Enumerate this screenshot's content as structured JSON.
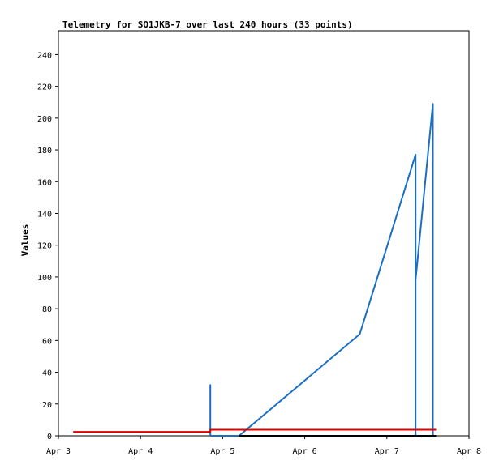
{
  "chart_data": {
    "type": "line",
    "title": "Telemetry for SQ1JKB-7 over last 240 hours (33 points)",
    "xlabel": "",
    "ylabel": "Values",
    "x_ticks": [
      "Apr 3",
      "Apr 4",
      "Apr 5",
      "Apr 6",
      "Apr 7",
      "Apr 8"
    ],
    "xlim": [
      3.0,
      8.0
    ],
    "y_ticks": [
      0,
      20,
      40,
      60,
      80,
      100,
      120,
      140,
      160,
      180,
      200,
      220,
      240
    ],
    "ylim": [
      0,
      255
    ],
    "grid": false,
    "series": [
      {
        "color": "#1a6fc4",
        "x": [
          4.85,
          4.85,
          4.85,
          5.1,
          5.2,
          6.67,
          7.35,
          7.35,
          7.35,
          7.56,
          7.56
        ],
        "y": [
          0,
          32,
          0,
          0,
          0,
          64,
          177,
          0,
          98,
          209,
          0
        ]
      },
      {
        "color": "#e00000",
        "x": [
          3.18,
          4.85,
          4.85,
          7.6
        ],
        "y": [
          2.5,
          2.5,
          3.8,
          3.8
        ]
      },
      {
        "color": "#000000",
        "x": [
          5.2,
          7.6
        ],
        "y": [
          0,
          0
        ]
      }
    ]
  }
}
